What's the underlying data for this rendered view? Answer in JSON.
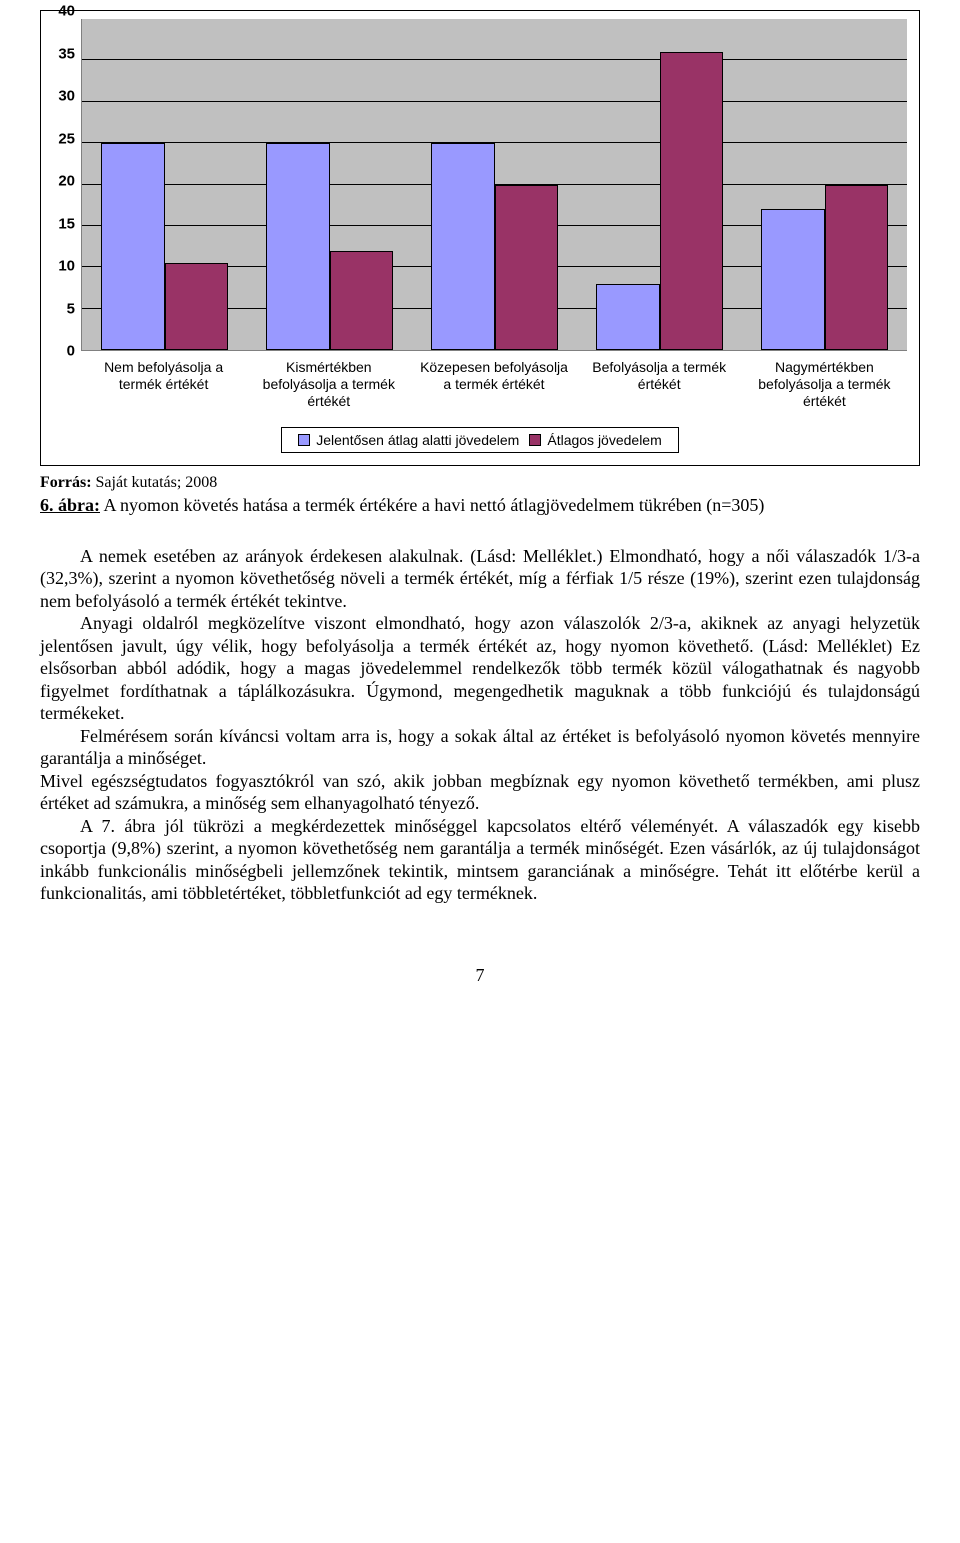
{
  "chart": {
    "type": "bar",
    "y_max": 40,
    "y_ticks": [
      0,
      5,
      10,
      15,
      20,
      25,
      30,
      35,
      40
    ],
    "background_color": "#c0c0c0",
    "grid_color": "#000000",
    "series": [
      {
        "name": "Jelentősen átlag alatti jövedelem",
        "color": "#9999ff"
      },
      {
        "name": "Átlagos jövedelem",
        "color": "#993366"
      }
    ],
    "categories": [
      "Nem befolyásolja a termék értékét",
      "Kismértékben befolyásolja a termék értékét",
      "Közepesen befolyásolja a termék értékét",
      "Befolyásolja a termék értékét",
      "Nagymértékben befolyásolja a termék értékét"
    ],
    "values_s1": [
      25,
      25,
      25,
      8,
      17
    ],
    "values_s2": [
      10.5,
      12,
      20,
      36,
      20
    ],
    "axis_fontsize": 15,
    "label_fontsize": 14
  },
  "source": {
    "label": "Forrás:",
    "text": "Saját kutatás; 2008"
  },
  "caption": {
    "label": "6. ábra:",
    "text": "A nyomon követés hatása a termék értékére a havi nettó átlagjövedelmem tükrében (n=305)"
  },
  "paragraphs": {
    "p1": "A nemek esetében az arányok érdekesen alakulnak. (Lásd: Melléklet.) Elmondható, hogy a női válaszadók 1/3-a (32,3%), szerint a nyomon követhetőség növeli a termék értékét, míg a férfiak 1/5 része (19%), szerint ezen tulajdonság nem befolyásoló a termék értékét tekintve.",
    "p2": "Anyagi oldalról megközelítve viszont elmondható, hogy azon válaszolók 2/3-a, akiknek az anyagi helyzetük jelentősen javult, úgy vélik, hogy befolyásolja a termék értékét az, hogy nyomon követhető. (Lásd: Melléklet) Ez elsősorban abból adódik, hogy a magas jövedelemmel rendelkezők több termék közül válogathatnak és nagyobb figyelmet fordíthatnak a táplálkozásukra. Úgymond, megengedhetik maguknak a több funkciójú és tulajdonságú termékeket.",
    "p3": "Felmérésem során kíváncsi voltam arra is, hogy a sokak által az értéket is befolyásoló nyomon követés mennyire garantálja a minőséget.",
    "p4": "Mivel egészségtudatos fogyasztókról van szó, akik jobban megbíznak egy nyomon követhető termékben, ami plusz értéket ad számukra, a minőség sem elhanyagolható tényező.",
    "p5": "A 7. ábra jól tükrözi a megkérdezettek minőséggel kapcsolatos eltérő véleményét. A válaszadók egy kisebb csoportja (9,8%) szerint, a nyomon követhetőség nem garantálja a termék minőségét. Ezen vásárlók, az új tulajdonságot inkább funkcionális minőségbeli jellemzőnek tekintik, mintsem garanciának a minőségre. Tehát itt előtérbe kerül a funkcionalitás, ami többletértéket, többletfunkciót ad egy terméknek."
  },
  "page_number": "7"
}
